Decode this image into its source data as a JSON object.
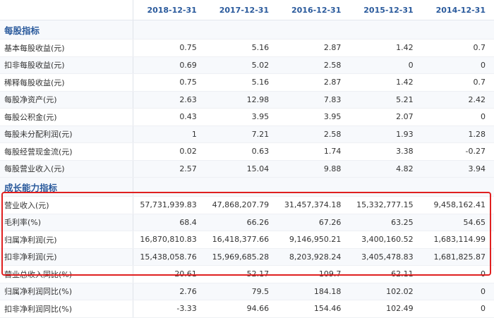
{
  "header": {
    "columns": [
      "2018-12-31",
      "2017-12-31",
      "2016-12-31",
      "2015-12-31",
      "2014-12-31"
    ]
  },
  "sections": [
    {
      "title": "每股指标",
      "rows": [
        {
          "label": "基本每股收益(元)",
          "values": [
            "0.75",
            "5.16",
            "2.87",
            "1.42",
            "0.7"
          ]
        },
        {
          "label": "扣非每股收益(元)",
          "values": [
            "0.69",
            "5.02",
            "2.58",
            "0",
            "0"
          ]
        },
        {
          "label": "稀释每股收益(元)",
          "values": [
            "0.75",
            "5.16",
            "2.87",
            "1.42",
            "0.7"
          ]
        },
        {
          "label": "每股净资产(元)",
          "values": [
            "2.63",
            "12.98",
            "7.83",
            "5.21",
            "2.42"
          ]
        },
        {
          "label": "每股公积金(元)",
          "values": [
            "0.43",
            "3.95",
            "3.95",
            "2.07",
            "0"
          ]
        },
        {
          "label": "每股未分配利润(元)",
          "values": [
            "1",
            "7.21",
            "2.58",
            "1.93",
            "1.28"
          ]
        },
        {
          "label": "每股经营现金流(元)",
          "values": [
            "0.02",
            "0.63",
            "1.74",
            "3.38",
            "-0.27"
          ]
        },
        {
          "label": "每股营业收入(元)",
          "values": [
            "2.57",
            "15.04",
            "9.88",
            "4.82",
            "3.94"
          ]
        }
      ]
    },
    {
      "title": "成长能力指标",
      "rows": [
        {
          "label": "营业收入(元)",
          "values": [
            "57,731,939.83",
            "47,868,207.79",
            "31,457,374.18",
            "15,332,777.15",
            "9,458,162.41"
          ]
        },
        {
          "label": "毛利率(%)",
          "values": [
            "68.4",
            "66.26",
            "67.26",
            "63.25",
            "54.65"
          ]
        },
        {
          "label": "归属净利润(元)",
          "values": [
            "16,870,810.83",
            "16,418,377.66",
            "9,146,950.21",
            "3,400,160.52",
            "1,683,114.99"
          ]
        },
        {
          "label": "扣非净利润(元)",
          "values": [
            "15,438,058.76",
            "15,969,685.28",
            "8,203,928.24",
            "3,405,478.83",
            "1,681,825.87"
          ]
        },
        {
          "label": "营业总收入同比(%)",
          "values": [
            "20.61",
            "52.17",
            "109.7",
            "62.11",
            "0"
          ]
        },
        {
          "label": "归属净利润同比(%)",
          "values": [
            "2.76",
            "79.5",
            "184.18",
            "102.02",
            "0"
          ]
        },
        {
          "label": "扣非净利润同比(%)",
          "values": [
            "-3.33",
            "94.66",
            "154.46",
            "102.49",
            "0"
          ]
        }
      ]
    }
  ]
}
